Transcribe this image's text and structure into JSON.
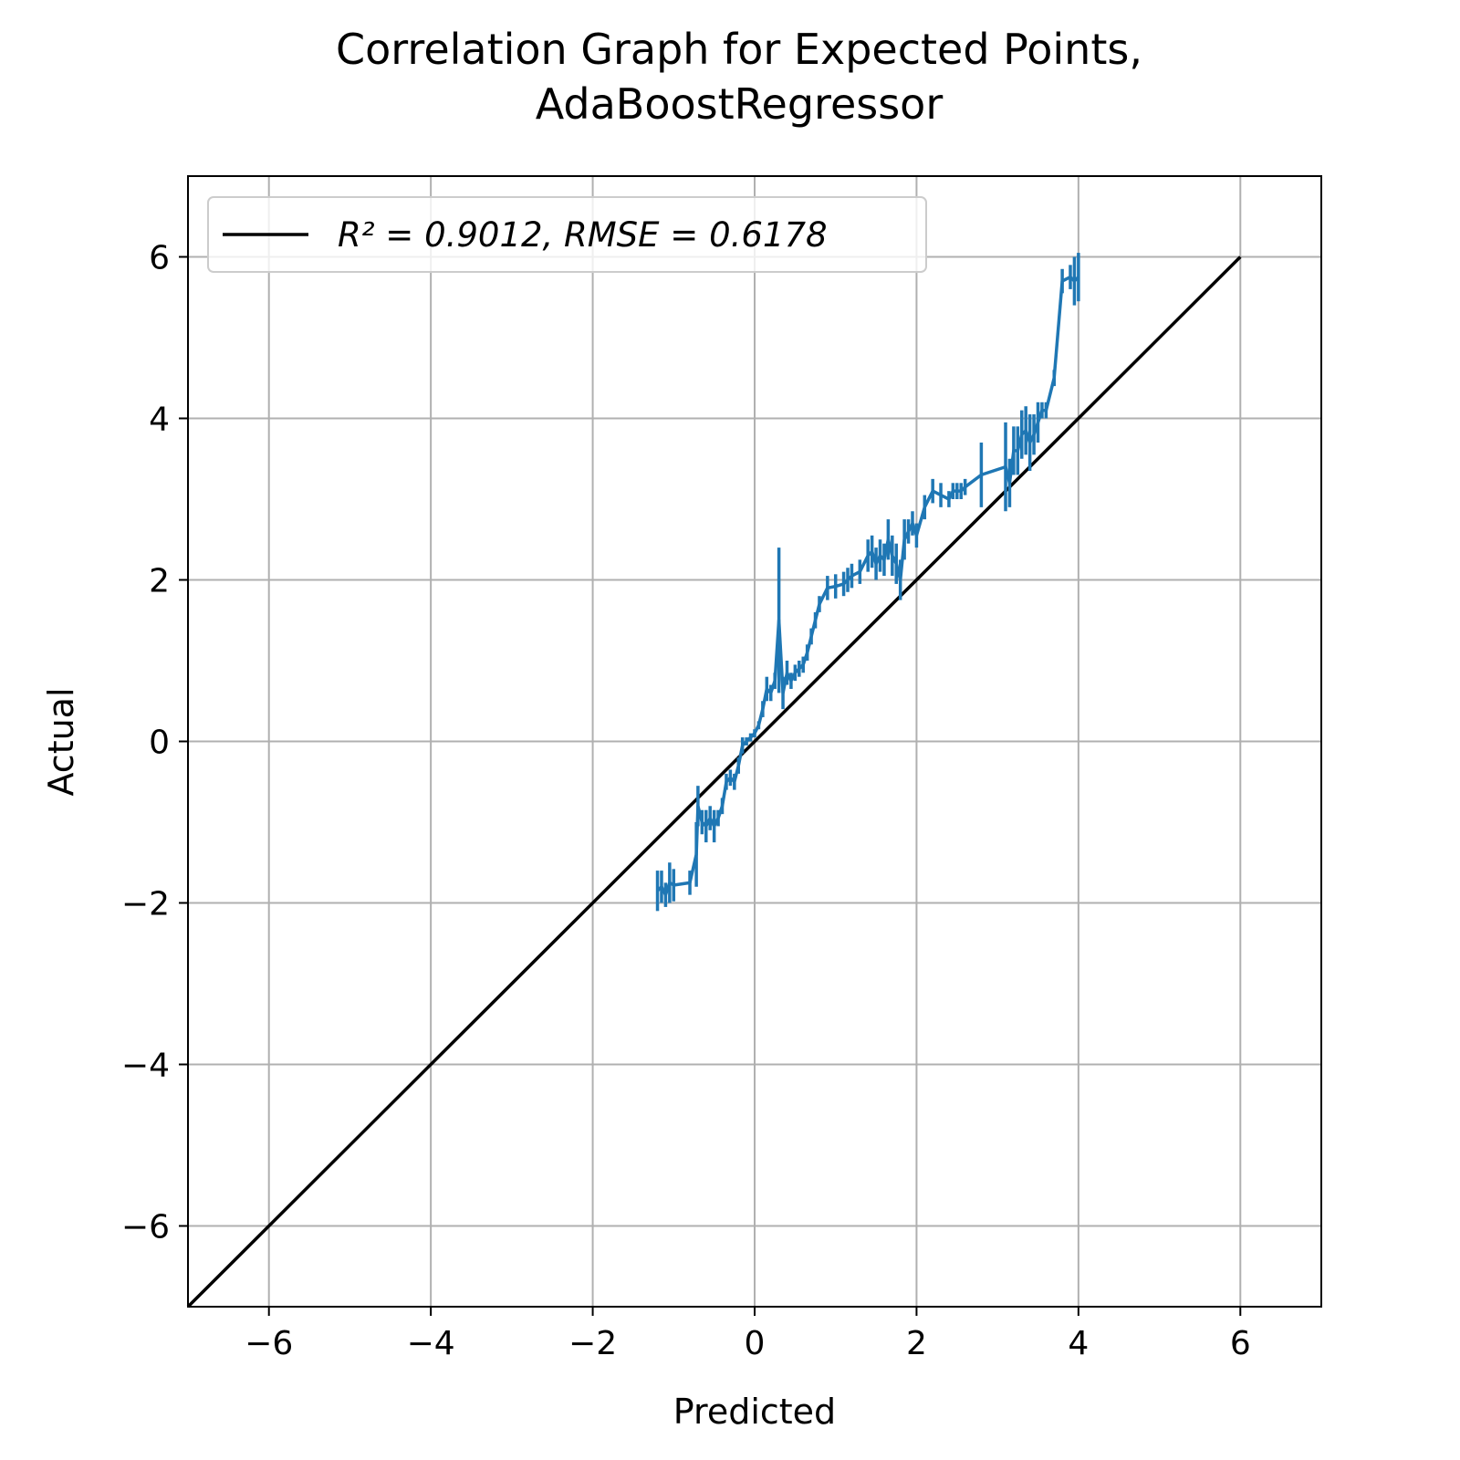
{
  "chart_data": {
    "type": "line",
    "title_lines": [
      "Correlation Graph for Expected Points,",
      "AdaBoostRegressor"
    ],
    "xlabel": "Predicted",
    "ylabel": "Actual",
    "xlim": [
      -7,
      7
    ],
    "ylim": [
      -7,
      7
    ],
    "xticks": [
      -6,
      -4,
      -2,
      0,
      2,
      4,
      6
    ],
    "yticks": [
      -6,
      -4,
      -2,
      0,
      2,
      4,
      6
    ],
    "xtick_labels": [
      "−6",
      "−4",
      "−2",
      "0",
      "2",
      "4",
      "6"
    ],
    "ytick_labels": [
      "−6",
      "−4",
      "−2",
      "0",
      "2",
      "4",
      "6"
    ],
    "grid": true,
    "legend_position": "upper-left",
    "legend_label": "R² = 0.9012, RMSE = 0.6178",
    "colors": {
      "identity": "#000000",
      "series": "#1f77b4",
      "grid": "#b0b0b0"
    },
    "identity_line": {
      "x": [
        -7,
        6
      ],
      "y": [
        -7,
        6
      ]
    },
    "series": [
      {
        "x": [
          -1.2,
          -1.15,
          -1.1,
          -1.05,
          -1.0,
          -0.8,
          -0.72,
          -0.7,
          -0.65,
          -0.6,
          -0.55,
          -0.5,
          -0.45,
          -0.4,
          -0.35,
          -0.3,
          -0.25,
          -0.2,
          -0.15,
          -0.1,
          -0.05,
          0.0,
          0.05,
          0.1,
          0.15,
          0.2,
          0.25,
          0.3,
          0.35,
          0.4,
          0.45,
          0.5,
          0.55,
          0.6,
          0.65,
          0.7,
          0.75,
          0.8,
          0.9,
          1.0,
          1.1,
          1.15,
          1.2,
          1.3,
          1.4,
          1.45,
          1.5,
          1.55,
          1.6,
          1.65,
          1.7,
          1.75,
          1.8,
          1.85,
          1.9,
          1.95,
          2.0,
          2.1,
          2.2,
          2.3,
          2.4,
          2.45,
          2.5,
          2.55,
          2.6,
          2.8,
          3.1,
          3.15,
          3.2,
          3.25,
          3.3,
          3.35,
          3.4,
          3.45,
          3.5,
          3.55,
          3.6,
          3.7,
          3.8,
          3.9,
          3.95,
          4.0
        ],
        "y": [
          -1.85,
          -1.8,
          -1.9,
          -1.75,
          -1.78,
          -1.75,
          -1.4,
          -0.8,
          -1.0,
          -1.05,
          -0.95,
          -1.05,
          -0.95,
          -0.8,
          -0.5,
          -0.45,
          -0.5,
          -0.3,
          -0.05,
          0.0,
          0.05,
          0.1,
          0.2,
          0.4,
          0.65,
          0.6,
          0.75,
          1.5,
          0.6,
          0.85,
          0.75,
          0.85,
          0.9,
          0.95,
          1.1,
          1.3,
          1.5,
          1.7,
          1.9,
          1.92,
          1.95,
          2.0,
          2.05,
          2.1,
          2.3,
          2.35,
          2.2,
          2.3,
          2.25,
          2.5,
          2.3,
          2.2,
          2.0,
          2.5,
          2.6,
          2.7,
          2.55,
          2.9,
          3.1,
          3.05,
          3.0,
          3.1,
          3.1,
          3.1,
          3.15,
          3.3,
          3.4,
          3.2,
          3.6,
          3.6,
          3.8,
          3.85,
          3.7,
          3.8,
          3.95,
          4.1,
          4.1,
          4.5,
          5.7,
          5.75,
          5.7,
          5.75
        ],
        "err": [
          0.25,
          0.2,
          0.15,
          0.25,
          0.2,
          0.15,
          0.4,
          0.25,
          0.15,
          0.2,
          0.15,
          0.2,
          0.1,
          0.1,
          0.1,
          0.1,
          0.1,
          0.1,
          0.1,
          0.05,
          0.05,
          0.05,
          0.05,
          0.1,
          0.15,
          0.1,
          0.1,
          0.9,
          0.2,
          0.15,
          0.1,
          0.1,
          0.1,
          0.1,
          0.1,
          0.1,
          0.1,
          0.1,
          0.15,
          0.15,
          0.15,
          0.15,
          0.15,
          0.15,
          0.2,
          0.2,
          0.2,
          0.2,
          0.2,
          0.25,
          0.25,
          0.25,
          0.25,
          0.25,
          0.15,
          0.15,
          0.15,
          0.15,
          0.15,
          0.15,
          0.1,
          0.1,
          0.1,
          0.1,
          0.1,
          0.4,
          0.55,
          0.3,
          0.3,
          0.3,
          0.3,
          0.3,
          0.35,
          0.25,
          0.25,
          0.1,
          0.1,
          0.1,
          0.15,
          0.15,
          0.3,
          0.3
        ]
      }
    ]
  }
}
